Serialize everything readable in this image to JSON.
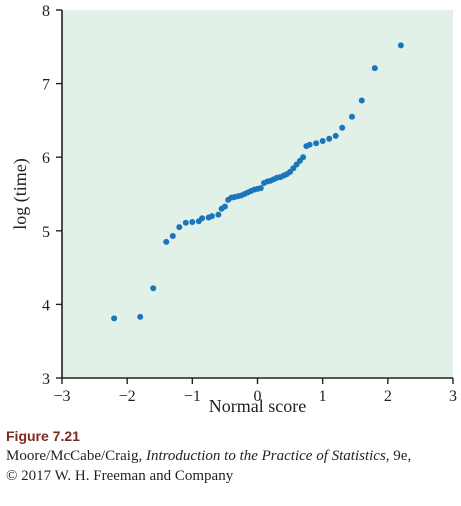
{
  "chart_data": {
    "type": "scatter",
    "xlabel": "Normal score",
    "ylabel": "log (time)",
    "xlim": [
      -3,
      3
    ],
    "ylim": [
      3,
      8
    ],
    "xticks": [
      -3,
      -2,
      -1,
      0,
      1,
      2,
      3
    ],
    "xtick_labels": [
      "−3",
      "−2",
      "−1",
      "0",
      "1",
      "2",
      "3"
    ],
    "yticks": [
      3,
      4,
      5,
      6,
      7,
      8
    ],
    "ytick_labels": [
      "3",
      "4",
      "5",
      "6",
      "7",
      "8"
    ],
    "grid": false,
    "colors": {
      "background": "#e2f1e8",
      "point": "#1b75bb",
      "axis": "#231f20"
    },
    "points": [
      [
        -2.2,
        3.81
      ],
      [
        -1.8,
        3.83
      ],
      [
        -1.6,
        4.22
      ],
      [
        -1.4,
        4.85
      ],
      [
        -1.3,
        4.93
      ],
      [
        -1.2,
        5.05
      ],
      [
        -1.1,
        5.11
      ],
      [
        -1.0,
        5.12
      ],
      [
        -0.9,
        5.13
      ],
      [
        -0.85,
        5.17
      ],
      [
        -0.75,
        5.18
      ],
      [
        -0.7,
        5.2
      ],
      [
        -0.6,
        5.22
      ],
      [
        -0.55,
        5.3
      ],
      [
        -0.5,
        5.33
      ],
      [
        -0.45,
        5.42
      ],
      [
        -0.4,
        5.45
      ],
      [
        -0.35,
        5.46
      ],
      [
        -0.3,
        5.47
      ],
      [
        -0.25,
        5.48
      ],
      [
        -0.2,
        5.5
      ],
      [
        -0.15,
        5.52
      ],
      [
        -0.1,
        5.54
      ],
      [
        -0.05,
        5.56
      ],
      [
        0.0,
        5.57
      ],
      [
        0.05,
        5.58
      ],
      [
        0.1,
        5.65
      ],
      [
        0.15,
        5.67
      ],
      [
        0.2,
        5.68
      ],
      [
        0.25,
        5.7
      ],
      [
        0.3,
        5.72
      ],
      [
        0.35,
        5.73
      ],
      [
        0.4,
        5.75
      ],
      [
        0.45,
        5.77
      ],
      [
        0.5,
        5.8
      ],
      [
        0.55,
        5.85
      ],
      [
        0.6,
        5.9
      ],
      [
        0.65,
        5.95
      ],
      [
        0.7,
        6.0
      ],
      [
        0.75,
        6.15
      ],
      [
        0.8,
        6.17
      ],
      [
        0.9,
        6.19
      ],
      [
        1.0,
        6.22
      ],
      [
        1.1,
        6.25
      ],
      [
        1.2,
        6.29
      ],
      [
        1.3,
        6.4
      ],
      [
        1.45,
        6.55
      ],
      [
        1.6,
        6.77
      ],
      [
        1.8,
        7.21
      ],
      [
        2.2,
        7.52
      ]
    ]
  },
  "caption": {
    "figure_label": "Figure 7.21",
    "line2_prefix": "Moore/McCabe/Craig, ",
    "line2_title": "Introduction to the Practice of Statistics",
    "line2_suffix": ", 9e,",
    "line3": "© 2017 W. H. Freeman and Company"
  }
}
